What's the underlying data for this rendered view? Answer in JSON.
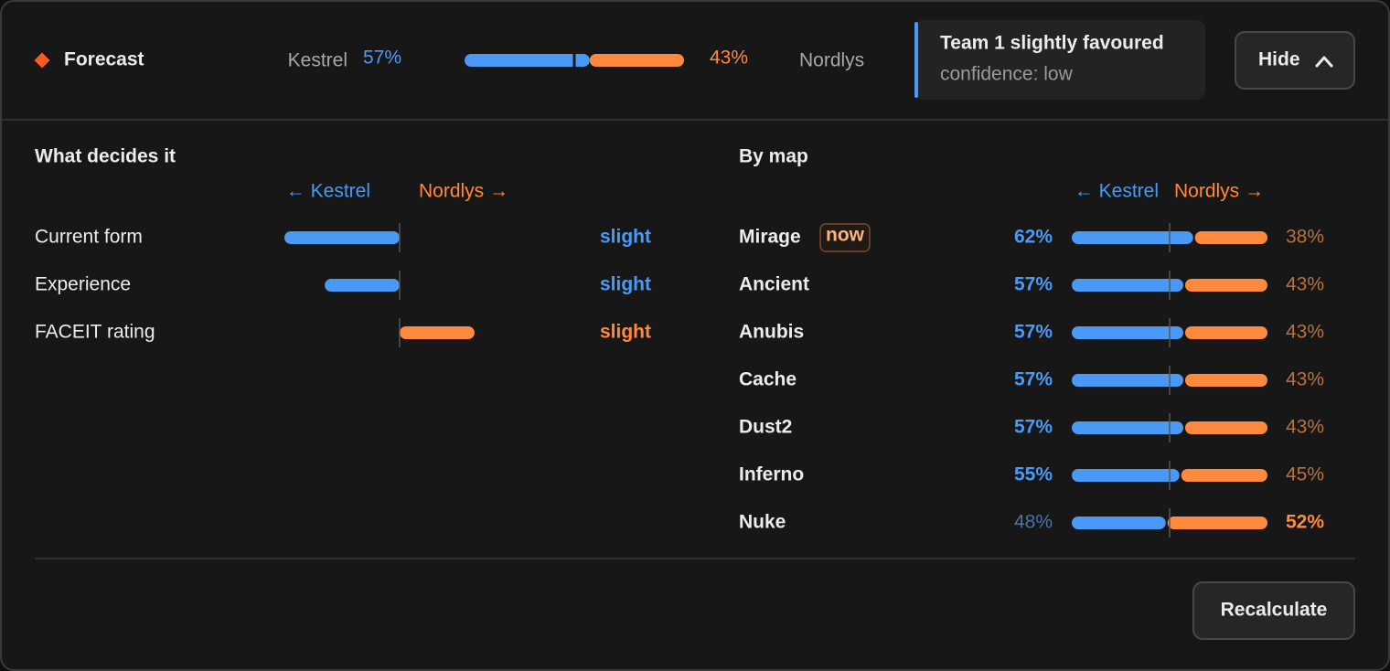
{
  "header": {
    "title": "Forecast",
    "team1": {
      "name": "Kestrel",
      "value": 57,
      "label": "57%"
    },
    "team2": {
      "name": "Nordlys",
      "value": 43,
      "label": "43%"
    },
    "verdict": {
      "title": "Team 1 slightly favoured",
      "subtitle": "confidence: low"
    },
    "toggle": "Hide"
  },
  "factors": {
    "title": "What decides it",
    "left_label": "← Kestrel",
    "right_label": "Nordlys →",
    "xlim": [
      -1,
      1
    ],
    "rows": [
      {
        "name": "Current form",
        "value": -1,
        "label": "slight"
      },
      {
        "name": "Experience",
        "value": -0.65,
        "label": "slight"
      },
      {
        "name": "FACEIT rating",
        "value": 0.65,
        "label": "slight"
      }
    ]
  },
  "maps": {
    "title": "By map",
    "left_label": "← Kestrel",
    "right_label": "Nordlys →",
    "rows": [
      {
        "name": "Mirage",
        "badge": "now",
        "kestrel": {
          "value": 62,
          "label": "62%"
        },
        "nordlys": {
          "value": 38,
          "label": "38%"
        }
      },
      {
        "name": "Ancient",
        "kestrel": {
          "value": 57,
          "label": "57%"
        },
        "nordlys": {
          "value": 43,
          "label": "43%"
        }
      },
      {
        "name": "Anubis",
        "kestrel": {
          "value": 57,
          "label": "57%"
        },
        "nordlys": {
          "value": 43,
          "label": "43%"
        }
      },
      {
        "name": "Cache",
        "kestrel": {
          "value": 57,
          "label": "57%"
        },
        "nordlys": {
          "value": 43,
          "label": "43%"
        }
      },
      {
        "name": "Dust2",
        "kestrel": {
          "value": 57,
          "label": "57%"
        },
        "nordlys": {
          "value": 43,
          "label": "43%"
        }
      },
      {
        "name": "Inferno",
        "kestrel": {
          "value": 55,
          "label": "55%"
        },
        "nordlys": {
          "value": 45,
          "label": "45%"
        }
      },
      {
        "name": "Nuke",
        "kestrel": {
          "value": 48,
          "label": "48%"
        },
        "nordlys": {
          "value": 52,
          "label": "52%"
        }
      }
    ]
  },
  "footer": {
    "button": "Recalculate"
  }
}
